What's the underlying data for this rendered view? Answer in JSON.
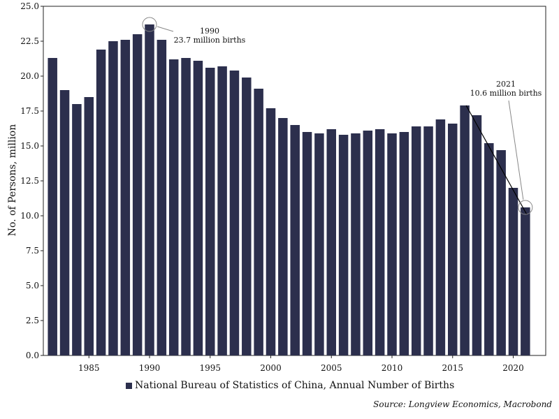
{
  "chart_data": {
    "type": "bar",
    "title": "",
    "xlabel": "",
    "ylabel": "No. of Persons, million",
    "ylim": [
      0,
      25
    ],
    "yticks": [
      "0.0",
      "2.5",
      "5.0",
      "7.5",
      "10.0",
      "12.5",
      "15.0",
      "17.5",
      "20.0",
      "22.5",
      "25.0"
    ],
    "xticks": [
      "1985",
      "1990",
      "1995",
      "2000",
      "2005",
      "2010",
      "2015",
      "2020"
    ],
    "categories": [
      1982,
      1983,
      1984,
      1985,
      1986,
      1987,
      1988,
      1989,
      1990,
      1991,
      1992,
      1993,
      1994,
      1995,
      1996,
      1997,
      1998,
      1999,
      2000,
      2001,
      2002,
      2003,
      2004,
      2005,
      2006,
      2007,
      2008,
      2009,
      2010,
      2011,
      2012,
      2013,
      2014,
      2015,
      2016,
      2017,
      2018,
      2019,
      2020,
      2021
    ],
    "series": [
      {
        "name": "National Bureau of Statistics of China, Annual Number of Births",
        "color": "#2c2f4d",
        "values": [
          21.3,
          19.0,
          18.0,
          18.5,
          21.9,
          22.5,
          22.6,
          23.0,
          23.7,
          22.6,
          21.2,
          21.3,
          21.1,
          20.6,
          20.7,
          20.4,
          19.9,
          19.1,
          17.7,
          17.0,
          16.5,
          16.0,
          15.9,
          16.2,
          15.8,
          15.9,
          16.1,
          16.2,
          15.9,
          16.0,
          16.4,
          16.4,
          16.9,
          16.6,
          17.9,
          17.2,
          15.2,
          14.7,
          12.0,
          10.6
        ]
      }
    ],
    "annotations": [
      {
        "year_label": "1990",
        "text": "23.7 million births",
        "x": 1990,
        "y": 23.7
      },
      {
        "year_label": "2021",
        "text": "10.6 million births",
        "x": 2021,
        "y": 10.6
      }
    ],
    "trend_line": {
      "from": [
        2016,
        17.9
      ],
      "to": [
        2021,
        10.6
      ]
    },
    "source": "Source: Longview Economics, Macrobond"
  }
}
